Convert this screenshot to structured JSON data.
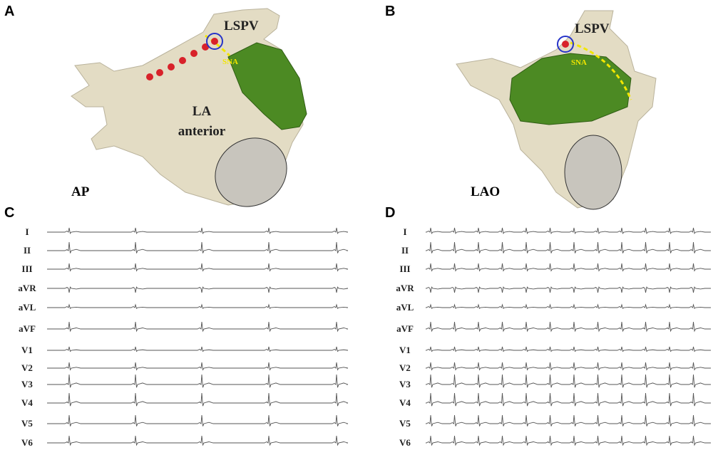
{
  "panels": [
    {
      "letter": "A",
      "view": "AP",
      "vein": "LSPV",
      "target": "SNA",
      "region": [
        "LA",
        "anterior"
      ]
    },
    {
      "letter": "B",
      "view": "LAO",
      "vein": "LSPV",
      "target": "SNA"
    },
    {
      "letter": "C",
      "leads": [
        "I",
        "II",
        "III",
        "aVR",
        "aVL",
        "aVF",
        "V1",
        "V2",
        "V3",
        "V4",
        "V5",
        "V6"
      ]
    },
    {
      "letter": "D",
      "leads": [
        "I",
        "II",
        "III",
        "aVR",
        "aVL",
        "aVF",
        "V1",
        "V2",
        "V3",
        "V4",
        "V5",
        "V6"
      ]
    }
  ]
}
